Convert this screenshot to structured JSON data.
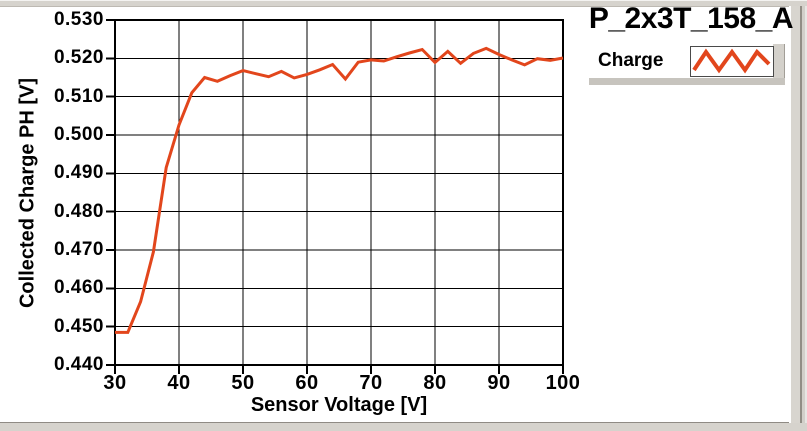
{
  "panel": {
    "background": "#FFFFFF",
    "bevel_gray": "#D6D3CD"
  },
  "chart": {
    "legend": {
      "series_label": "Charge",
      "swatch_icon": "zigzag-line-icon"
    }
  },
  "chart_data": {
    "type": "line",
    "title": "P_2x3T_158_A",
    "xlabel": "Sensor Voltage [V]",
    "ylabel": "Collected Charge PH [V]",
    "xlim": [
      30,
      100
    ],
    "ylim": [
      0.44,
      0.53
    ],
    "x_ticks": [
      30,
      40,
      50,
      60,
      70,
      80,
      90,
      100
    ],
    "y_ticks": [
      0.44,
      0.45,
      0.46,
      0.47,
      0.48,
      0.49,
      0.5,
      0.51,
      0.52,
      0.53
    ],
    "y_tick_decimals": 3,
    "grid": true,
    "grid_color": "#000000",
    "legend_position": "outside-top-right",
    "series": [
      {
        "name": "Charge",
        "color": "#E2461C",
        "x": [
          30,
          32,
          34,
          36,
          38,
          40,
          42,
          44,
          46,
          48,
          50,
          52,
          54,
          56,
          58,
          60,
          62,
          64,
          66,
          68,
          70,
          72,
          74,
          76,
          78,
          80,
          82,
          84,
          86,
          88,
          90,
          92,
          94,
          96,
          98,
          100
        ],
        "y": [
          0.4485,
          0.4485,
          0.4565,
          0.4695,
          0.4915,
          0.5026,
          0.511,
          0.515,
          0.514,
          0.5155,
          0.5168,
          0.516,
          0.5152,
          0.5166,
          0.5149,
          0.5158,
          0.517,
          0.5184,
          0.5146,
          0.519,
          0.5196,
          0.5193,
          0.5204,
          0.5214,
          0.5223,
          0.5189,
          0.5218,
          0.5187,
          0.5213,
          0.5226,
          0.521,
          0.5196,
          0.5183,
          0.5199,
          0.5195,
          0.5201
        ]
      }
    ]
  }
}
